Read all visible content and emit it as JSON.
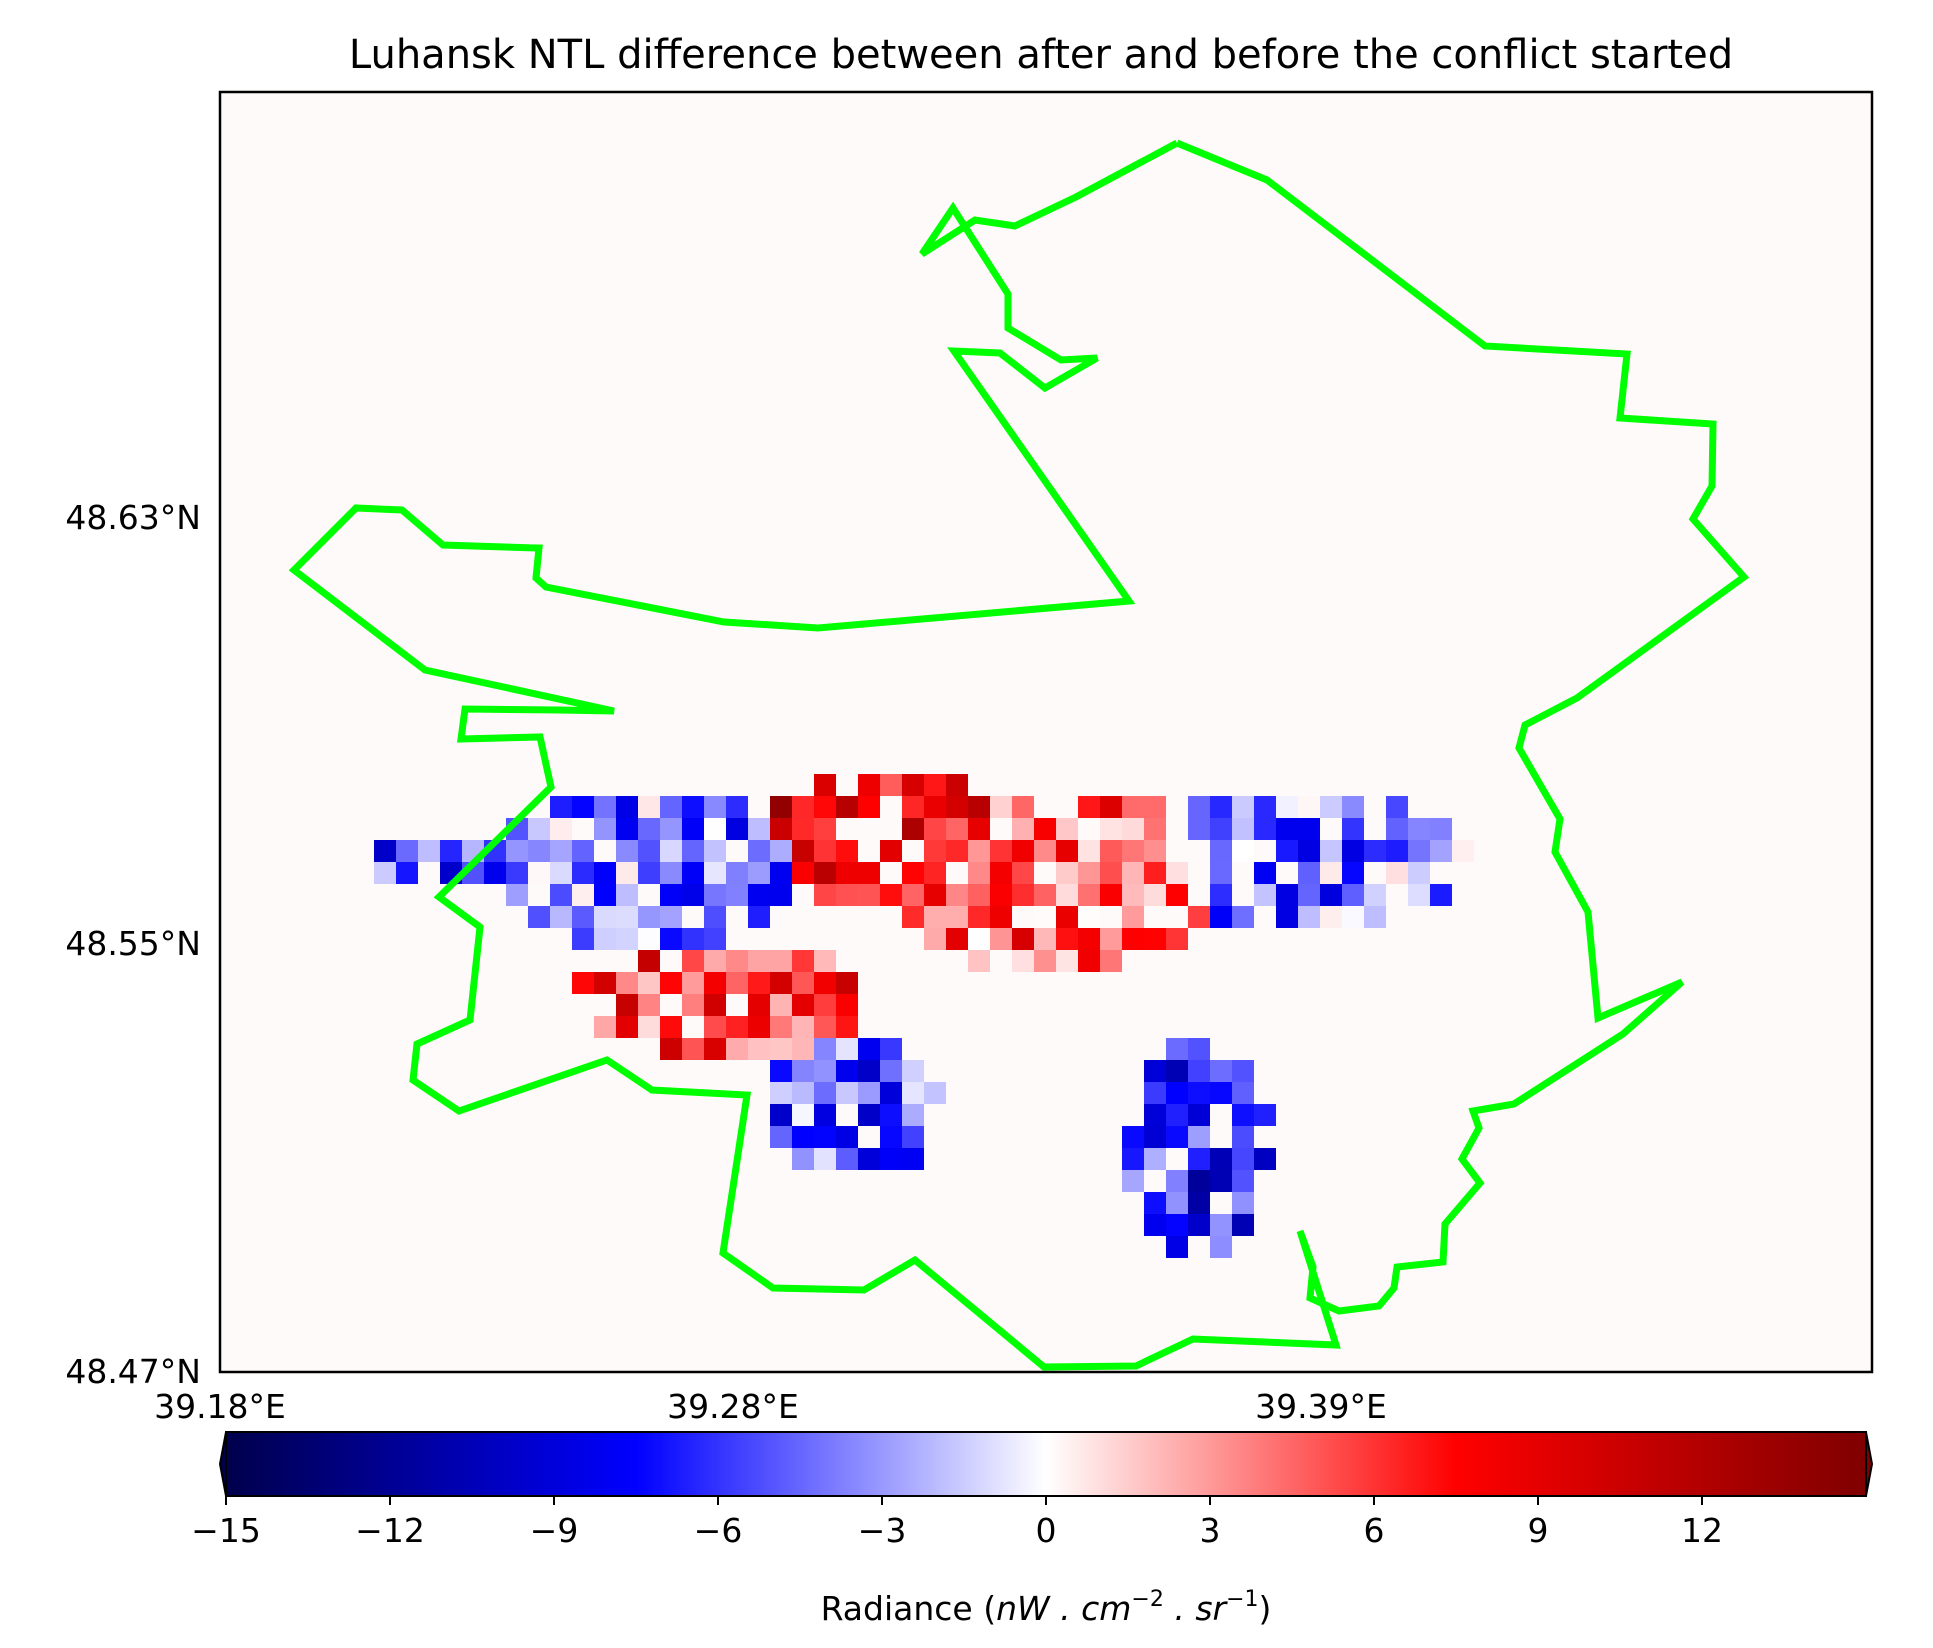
{
  "title": "Luhansk NTL difference between after and before the conflict started",
  "map": {
    "lat_ticks": [
      "48.63°N",
      "48.55°N",
      "48.47°N"
    ],
    "lon_ticks": [
      "39.18°E",
      "39.28°E",
      "39.39°E"
    ],
    "boundary_color": "#00ff00",
    "background_color": "#fffafa"
  },
  "colorbar": {
    "cmap": "seismic",
    "extend": "both",
    "range": [
      -15,
      15
    ],
    "ticks": [
      "−15",
      "−12",
      "−9",
      "−6",
      "−3",
      "0",
      "3",
      "6",
      "9",
      "12"
    ],
    "label_text": "Radiance (",
    "label_math": "nW . cm",
    "label_exp1": "−2",
    "label_mid": " . sr",
    "label_exp2": "−1",
    "label_close": ")"
  }
}
